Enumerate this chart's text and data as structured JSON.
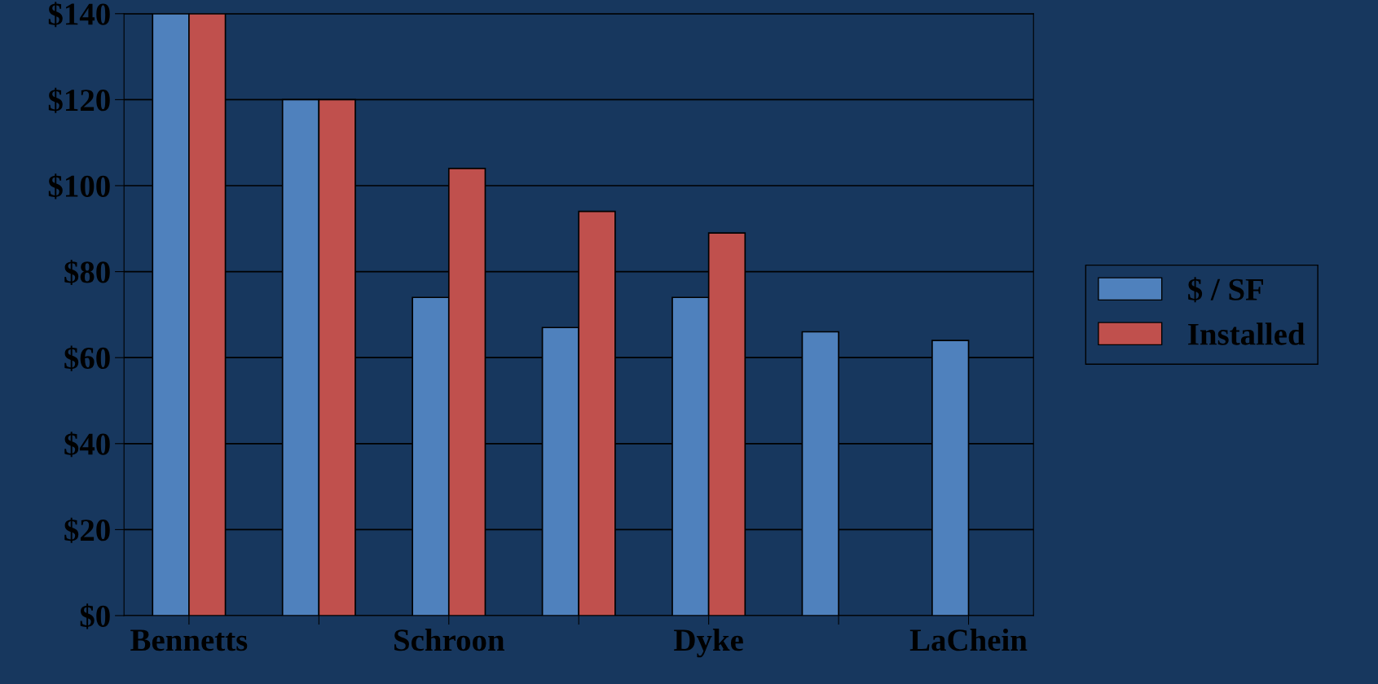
{
  "chart_data": {
    "type": "bar",
    "categories": [
      "Bennetts",
      null,
      "Schroon",
      null,
      "Dyke",
      null,
      "LaChein"
    ],
    "series": [
      {
        "name": "$ / SF",
        "color": "#4f81bd",
        "values": [
          140,
          120,
          74,
          67,
          74,
          66,
          64
        ]
      },
      {
        "name": "Installed",
        "color": "#c0504d",
        "values": [
          140,
          120,
          104,
          94,
          89,
          null,
          null
        ]
      }
    ],
    "ylim": [
      0,
      140
    ],
    "yticks": [
      {
        "value": 0,
        "label": "$0"
      },
      {
        "value": 20,
        "label": "$20"
      },
      {
        "value": 40,
        "label": "$40"
      },
      {
        "value": 60,
        "label": "$60"
      },
      {
        "value": 80,
        "label": "$80"
      },
      {
        "value": 100,
        "label": "$100"
      },
      {
        "value": 120,
        "label": "$120"
      },
      {
        "value": 140,
        "label": "$140"
      }
    ],
    "grid": "y",
    "legend": "right"
  }
}
